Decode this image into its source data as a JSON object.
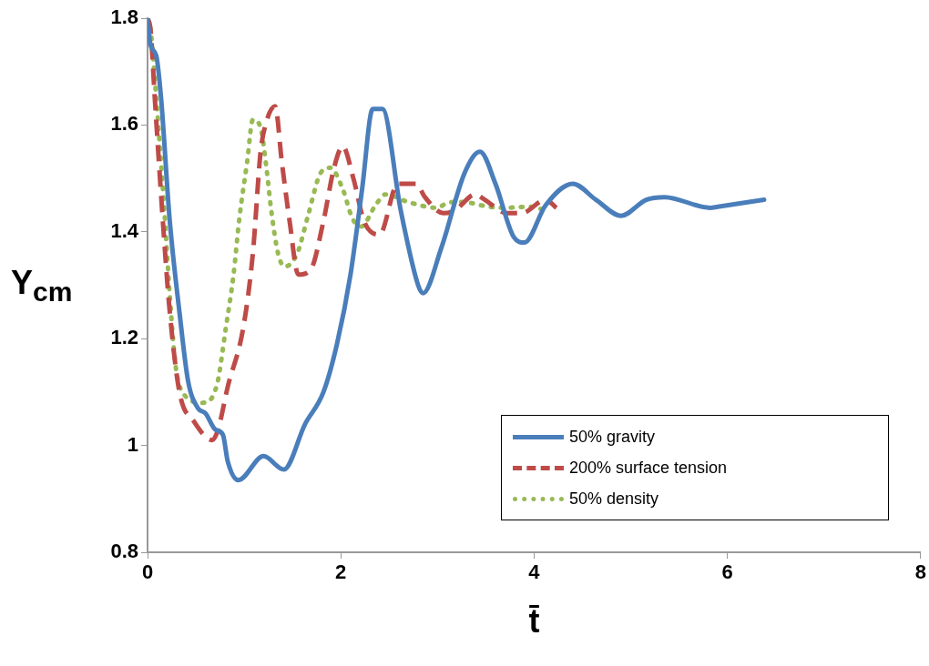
{
  "chart_data": {
    "type": "line",
    "xlabel": "t̄",
    "ylabel": "Y$_{cm}$",
    "xlim": [
      0,
      8
    ],
    "xticks": [
      0,
      2,
      4,
      6,
      8
    ],
    "ylim": [
      0.8,
      1.8
    ],
    "yticks": [
      {
        "value": 0.8,
        "label": "0.8"
      },
      1,
      1.2,
      1.4,
      1.6,
      1.8
    ],
    "grid": false,
    "legend": "bottom right",
    "marker": "none",
    "series": [
      {
        "name": "50% gravity",
        "color": "#4a7ebb",
        "line_style": "solid",
        "x": [
          0,
          0.03,
          0.09,
          0.14,
          0.23,
          0.33,
          0.42,
          0.52,
          0.6,
          0.7,
          0.78,
          0.83,
          0.94,
          1.2,
          1.41,
          1.63,
          1.82,
          1.96,
          2.1,
          2.22,
          2.33,
          2.43,
          2.62,
          2.8,
          2.85,
          3.04,
          3.28,
          3.44,
          3.6,
          3.79,
          3.9,
          4.12,
          4.4,
          4.64,
          4.9,
          5.16,
          5.35,
          5.82,
          5.9,
          6.38
        ],
        "values": [
          1.8,
          1.75,
          1.73,
          1.65,
          1.42,
          1.25,
          1.12,
          1.07,
          1.06,
          1.03,
          1.02,
          0.97,
          0.935,
          0.98,
          0.955,
          1.04,
          1.1,
          1.19,
          1.32,
          1.48,
          1.63,
          1.63,
          1.44,
          1.3,
          1.285,
          1.37,
          1.51,
          1.55,
          1.49,
          1.39,
          1.38,
          1.45,
          1.49,
          1.46,
          1.43,
          1.46,
          1.465,
          1.445,
          1.447,
          1.46
        ]
      },
      {
        "name": "200% surface tension",
        "color": "#be4b48",
        "line_style": "dashed",
        "x": [
          0,
          0.03,
          0.075,
          0.17,
          0.23,
          0.33,
          0.48,
          0.67,
          0.73,
          0.83,
          0.99,
          1.09,
          1.17,
          1.22,
          1.32,
          1.39,
          1.47,
          1.56,
          1.69,
          1.82,
          1.93,
          2.02,
          2.13,
          2.24,
          2.4,
          2.59,
          2.78,
          2.87,
          3.06,
          3.18,
          3.39,
          3.49,
          3.72,
          3.87,
          4.12,
          4.23
        ],
        "values": [
          1.8,
          1.78,
          1.65,
          1.39,
          1.25,
          1.1,
          1.045,
          1.01,
          1.03,
          1.11,
          1.22,
          1.36,
          1.55,
          1.6,
          1.635,
          1.53,
          1.42,
          1.32,
          1.33,
          1.42,
          1.52,
          1.56,
          1.5,
          1.42,
          1.395,
          1.49,
          1.49,
          1.465,
          1.435,
          1.44,
          1.47,
          1.46,
          1.435,
          1.435,
          1.46,
          1.445
        ]
      },
      {
        "name": "50% density",
        "color": "#98b954",
        "line_style": "dotted",
        "x": [
          0,
          0.03,
          0.09,
          0.17,
          0.23,
          0.29,
          0.36,
          0.57,
          0.72,
          0.81,
          0.89,
          0.95,
          1.03,
          1.09,
          1.17,
          1.23,
          1.28,
          1.35,
          1.42,
          1.55,
          1.66,
          1.79,
          1.89,
          2.02,
          2.12,
          2.21,
          2.36,
          2.46,
          2.71,
          2.99,
          3.12,
          3.25,
          3.53,
          3.68,
          3.96,
          4.12
        ],
        "values": [
          1.8,
          1.78,
          1.65,
          1.45,
          1.28,
          1.15,
          1.1,
          1.08,
          1.115,
          1.22,
          1.32,
          1.425,
          1.53,
          1.61,
          1.595,
          1.52,
          1.44,
          1.36,
          1.335,
          1.36,
          1.43,
          1.51,
          1.52,
          1.48,
          1.425,
          1.41,
          1.45,
          1.47,
          1.455,
          1.445,
          1.455,
          1.456,
          1.447,
          1.445,
          1.447,
          1.44
        ]
      }
    ]
  }
}
